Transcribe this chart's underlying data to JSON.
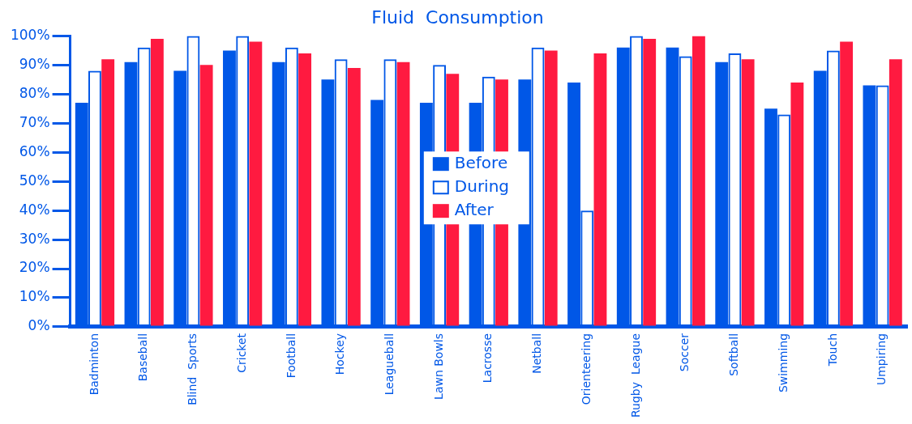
{
  "chart_data": {
    "type": "bar",
    "title": "Fluid  Consumption",
    "categories": [
      "Badminton",
      "Baseball",
      "Blind  Sports",
      "Cricket",
      "Football",
      "Hockey",
      "Leagueball",
      "Lawn Bowls",
      "Lacrosse",
      "Netball",
      "Orienteering",
      "Rugby  League",
      "Soccer",
      "Softball",
      "Swimming",
      "Touch",
      "Umpiring"
    ],
    "series": [
      {
        "name": "Before",
        "color": "#0057e7",
        "values": [
          77,
          91,
          88,
          95,
          91,
          85,
          78,
          77,
          77,
          85,
          84,
          96,
          96,
          91,
          75,
          88,
          83
        ]
      },
      {
        "name": "During",
        "color": "#0057e7",
        "values": [
          88,
          96,
          100,
          100,
          96,
          92,
          92,
          90,
          86,
          96,
          40,
          100,
          93,
          94,
          73,
          95,
          83
        ]
      },
      {
        "name": "After",
        "color": "#ff1a40",
        "values": [
          92,
          99,
          90,
          98,
          94,
          89,
          91,
          87,
          85,
          95,
          94,
          99,
          100,
          92,
          84,
          98,
          92
        ]
      }
    ],
    "ylim": [
      0,
      100
    ],
    "yticks": [
      {
        "value": 0,
        "label": "0%"
      },
      {
        "value": 10,
        "label": "10%"
      },
      {
        "value": 20,
        "label": "20%"
      },
      {
        "value": 30,
        "label": "30%"
      },
      {
        "value": 40,
        "label": "40%"
      },
      {
        "value": 50,
        "label": "50%"
      },
      {
        "value": 60,
        "label": "60%"
      },
      {
        "value": 70,
        "label": "70%"
      },
      {
        "value": 80,
        "label": "80%"
      },
      {
        "value": 90,
        "label": "90%"
      },
      {
        "value": 100,
        "label": "100%"
      }
    ],
    "grid": false,
    "legend": "center"
  }
}
